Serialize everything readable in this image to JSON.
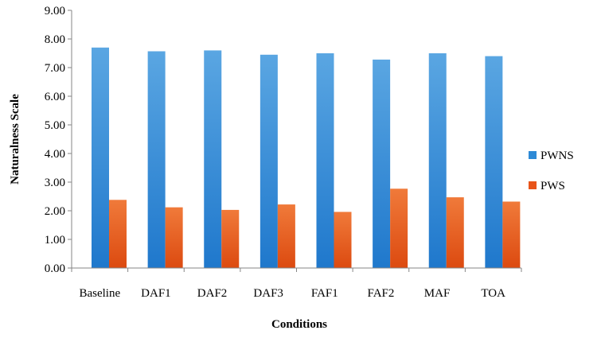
{
  "chart_data": {
    "type": "bar",
    "title": "",
    "xlabel": "Conditions",
    "ylabel": "Naturalness Scale",
    "ylim": [
      0,
      9
    ],
    "yticks": [
      "0.00",
      "1.00",
      "2.00",
      "3.00",
      "4.00",
      "5.00",
      "6.00",
      "7.00",
      "8.00",
      "9.00"
    ],
    "categories": [
      "Baseline",
      "DAF1",
      "DAF2",
      "DAF3",
      "FAF1",
      "FAF2",
      "MAF",
      "TOA"
    ],
    "series": [
      {
        "name": "PWNS",
        "color": "#2E8AD6",
        "values": [
          7.7,
          7.57,
          7.6,
          7.45,
          7.5,
          7.28,
          7.5,
          7.4
        ]
      },
      {
        "name": "PWS",
        "color": "#E8541A",
        "values": [
          2.38,
          2.12,
          2.03,
          2.22,
          1.96,
          2.77,
          2.47,
          2.32
        ]
      }
    ],
    "grid": false,
    "legend_position": "right"
  }
}
